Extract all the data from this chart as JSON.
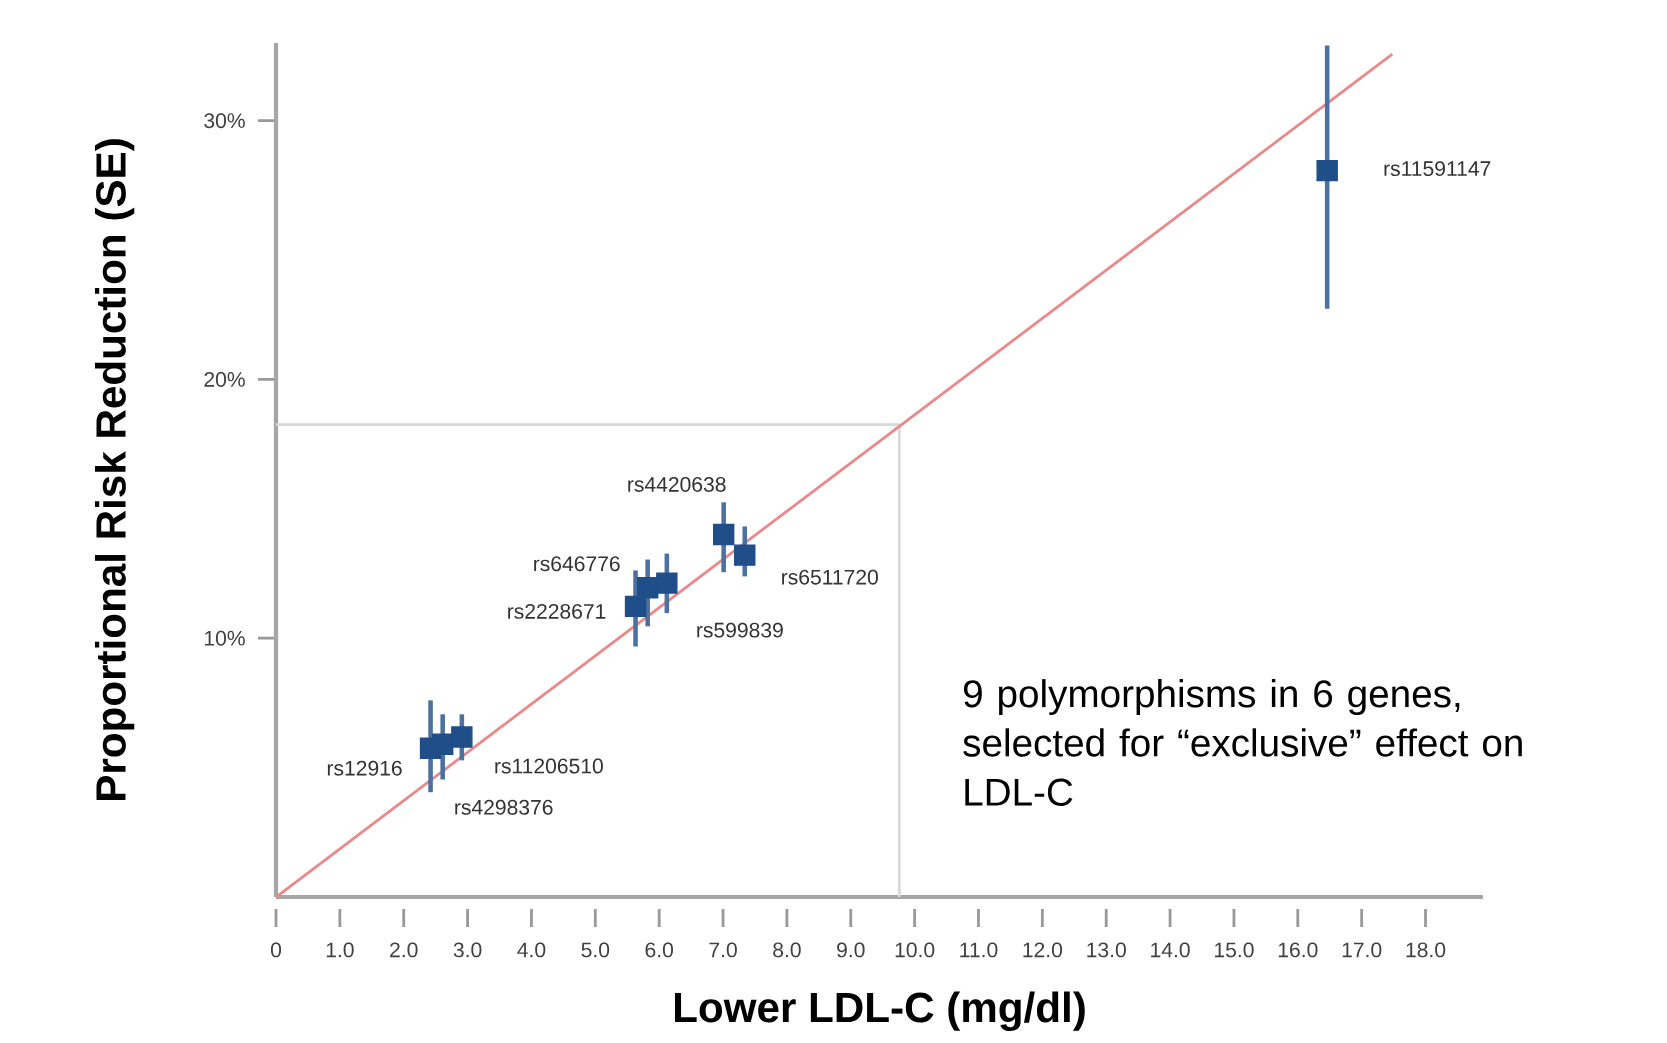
{
  "chart_data": {
    "type": "scatter",
    "xlabel": "Lower LDL-C (mg/dl)",
    "ylabel": "Proportional Risk Reduction (SE)",
    "annotations": [
      "9 polymorphisms in 6 genes, selected for “exclusive” effect on LDL-C"
    ],
    "xlim": [
      0,
      18.9
    ],
    "ylim": [
      0,
      33
    ],
    "xticks": [
      0,
      {
        "value": 1,
        "label": "1.0"
      },
      {
        "value": 2,
        "label": "2.0"
      },
      {
        "value": 3,
        "label": "3.0"
      },
      {
        "value": 4,
        "label": "4.0"
      },
      {
        "value": 5,
        "label": "5.0"
      },
      {
        "value": 6,
        "label": "6.0"
      },
      {
        "value": 7,
        "label": "7.0"
      },
      {
        "value": 8,
        "label": "8.0"
      },
      {
        "value": 9,
        "label": "9.0"
      },
      {
        "value": 10,
        "label": "10.0"
      },
      {
        "value": 11,
        "label": "11.0"
      },
      {
        "value": 12,
        "label": "12.0"
      },
      {
        "value": 13,
        "label": "13.0"
      },
      {
        "value": 14,
        "label": "14.0"
      },
      {
        "value": 15,
        "label": "15.0"
      },
      {
        "value": 16,
        "label": "16.0"
      },
      {
        "value": 17,
        "label": "17.0"
      },
      {
        "value": 18,
        "label": "18.0"
      }
    ],
    "yticks": [
      {
        "value": 10,
        "label": "10%"
      },
      {
        "value": 20,
        "label": "20%"
      },
      {
        "value": 30,
        "label": "30%"
      }
    ],
    "marker": "square",
    "grid": false,
    "legend": false,
    "series": [
      {
        "type": "line",
        "marker": "none",
        "color": "#d9d9d9",
        "x": [
          0,
          9.76,
          9.76
        ],
        "values": [
          18.25,
          18.25,
          0
        ]
      },
      {
        "type": "line",
        "marker": "none",
        "color": "#e8898a",
        "x": [
          0,
          17.48
        ],
        "values": [
          0,
          32.57
        ]
      },
      {
        "name": "rs12916",
        "color": "#1f4e89",
        "x": [
          2.42
        ],
        "values": [
          5.75
        ],
        "errors": [
          [
            4.05,
            7.6
          ]
        ]
      },
      {
        "name": "rs4298376",
        "color": "#1f4e89",
        "x": [
          2.61
        ],
        "values": [
          5.9
        ],
        "errors": [
          [
            4.54,
            7.06
          ]
        ]
      },
      {
        "name": "rs11206510",
        "color": "#1f4e89",
        "x": [
          2.91
        ],
        "values": [
          6.18
        ],
        "errors": [
          [
            5.28,
            7.06
          ]
        ]
      },
      {
        "name": "rs2228671",
        "color": "#1f4e89",
        "x": [
          5.63
        ],
        "values": [
          11.23
        ],
        "errors": [
          [
            9.68,
            12.62
          ]
        ]
      },
      {
        "name": "rs646776",
        "color": "#1f4e89",
        "x": [
          5.82
        ],
        "values": [
          11.95
        ],
        "errors": [
          [
            10.46,
            13.04
          ]
        ]
      },
      {
        "name": "rs599839",
        "color": "#1f4e89",
        "x": [
          6.12
        ],
        "values": [
          12.13
        ],
        "errors": [
          [
            10.97,
            13.27
          ]
        ]
      },
      {
        "name": "rs4420638",
        "color": "#1f4e89",
        "x": [
          7.01
        ],
        "values": [
          14.01
        ],
        "errors": [
          [
            12.55,
            15.25
          ]
        ]
      },
      {
        "name": "rs6511720",
        "color": "#1f4e89",
        "x": [
          7.34
        ],
        "values": [
          13.21
        ],
        "errors": [
          [
            12.39,
            14.32
          ]
        ]
      },
      {
        "name": "rs11591147",
        "color": "#1f4e89",
        "x": [
          16.46
        ],
        "values": [
          28.07
        ],
        "errors": [
          [
            22.73,
            32.9
          ]
        ]
      }
    ]
  }
}
